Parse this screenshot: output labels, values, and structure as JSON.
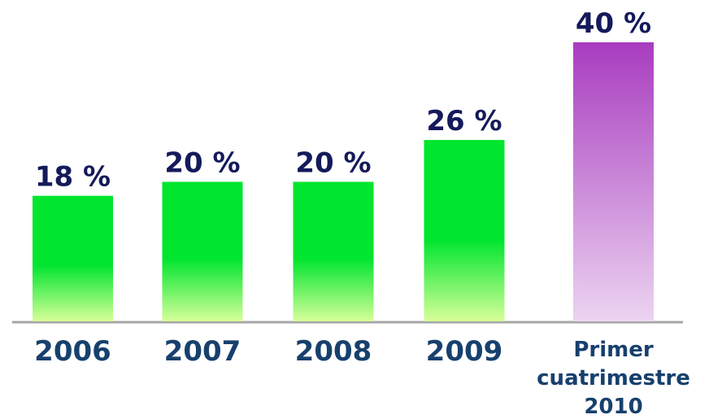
{
  "chart_data": {
    "type": "bar",
    "categories": [
      "2006",
      "2007",
      "2008",
      "2009",
      "Primer cuatrimestre 2010"
    ],
    "values": [
      18,
      20,
      20,
      26,
      40
    ],
    "value_labels": [
      "18 %",
      "20 %",
      "20 %",
      "26 %",
      "40 %"
    ],
    "colors": [
      "#00e52e",
      "#00e52e",
      "#00e52e",
      "#00e52e",
      "#a83cbf"
    ],
    "colors_bottom": [
      "#d8ff9a",
      "#d8ff9a",
      "#d8ff9a",
      "#d8ff9a",
      "#ecd4f1"
    ]
  }
}
